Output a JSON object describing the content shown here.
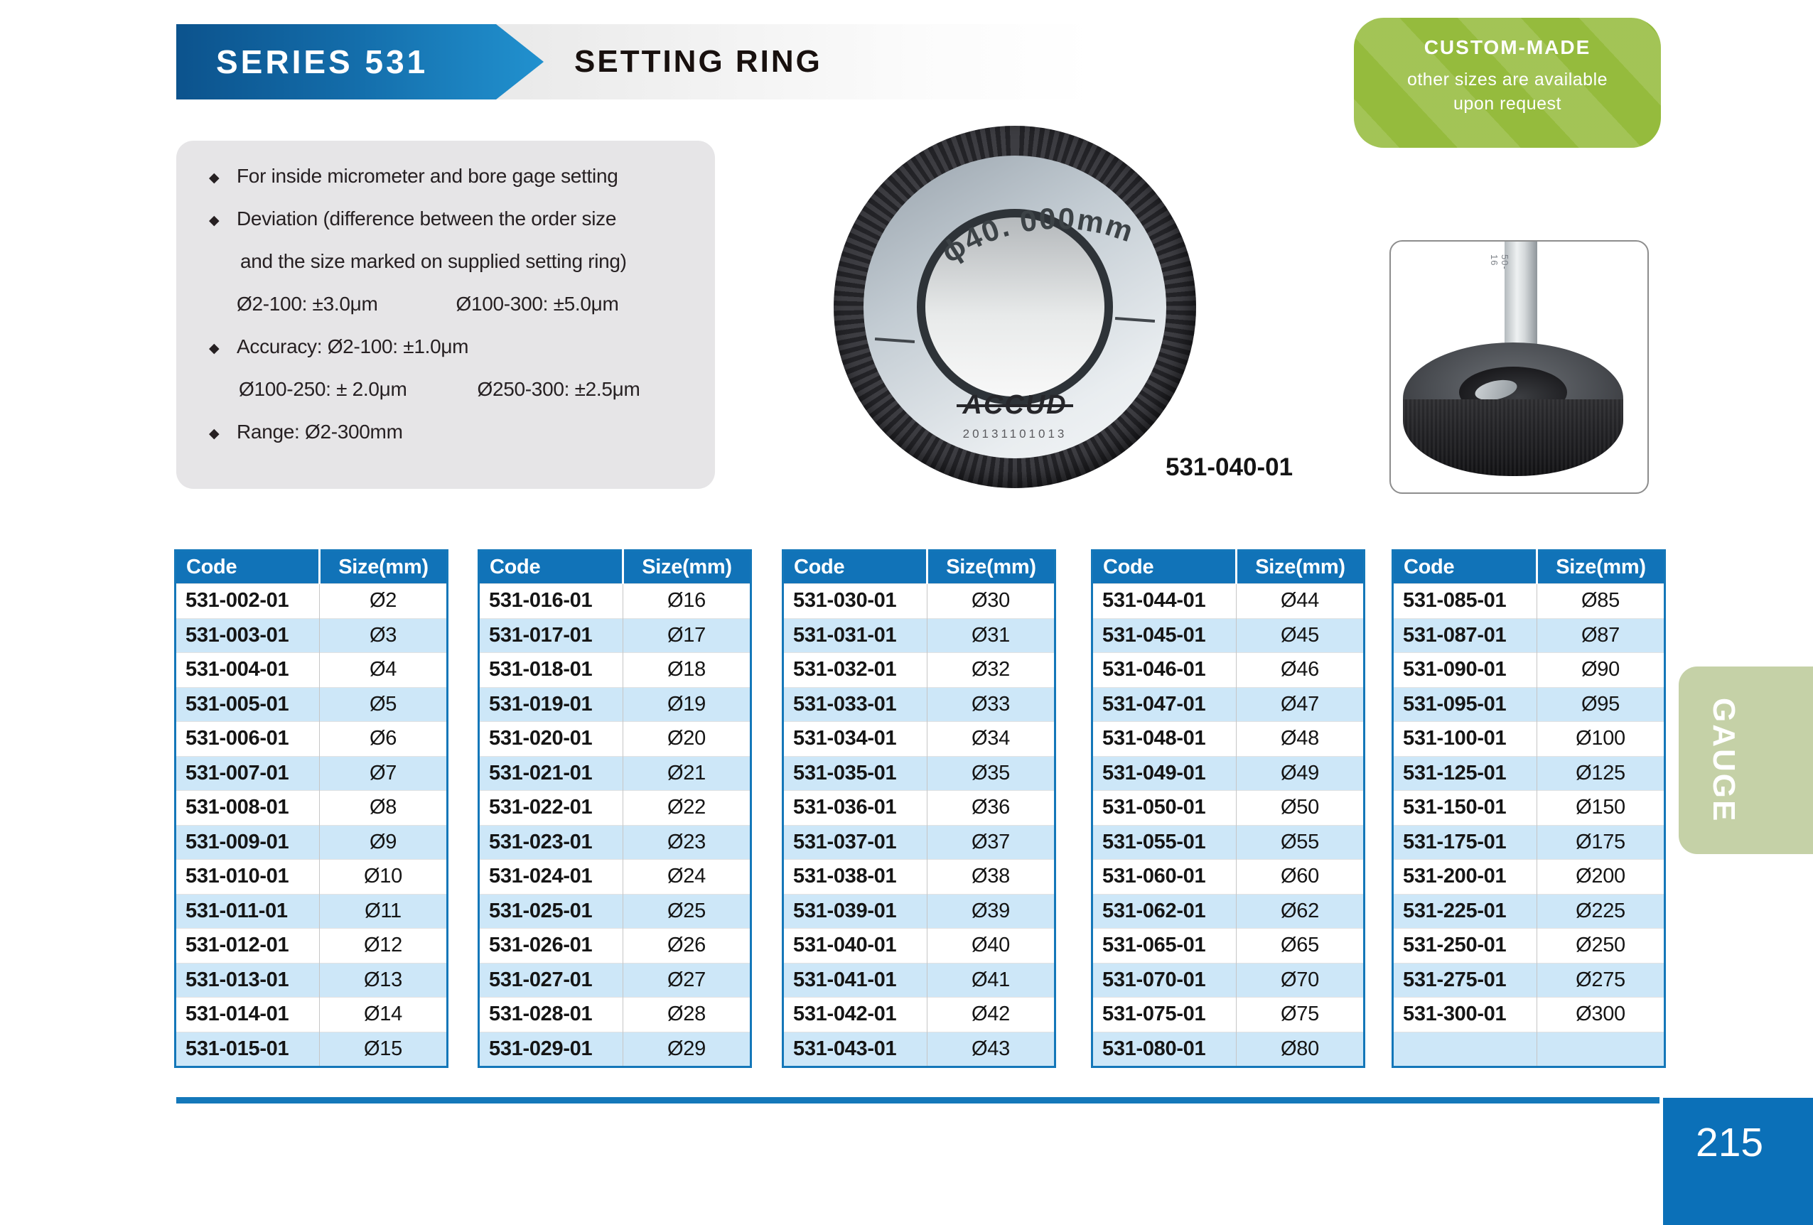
{
  "page": {
    "series": "SERIES 531",
    "title": "SETTING RING",
    "side_tab": "GAUGE",
    "page_number": "215"
  },
  "colors": {
    "accent_blue": "#1173b8",
    "row_alt_blue": "#cde7f8",
    "badge_green": "#95bb3d",
    "tab_sage": "#c5d1a7",
    "footer_blue": "#0b70b8"
  },
  "badge": {
    "title": "CUSTOM-MADE",
    "line1": "other sizes are available",
    "line2": "upon request"
  },
  "features": {
    "bullet1": "For inside micrometer and bore gage setting",
    "bullet2_line1": "Deviation (difference between the order size",
    "bullet2_line2": "and the size marked on supplied setting ring)",
    "bullet2_val1": "Ø2-100: ±3.0μm",
    "bullet2_val2": "Ø100-300: ±5.0μm",
    "bullet3_line1": "Accuracy: Ø2-100:  ±1.0μm",
    "bullet3_val1": "Ø100-250: ± 2.0μm",
    "bullet3_val2": "Ø250-300:  ±2.5μm",
    "bullet4": "Range: Ø2-300mm"
  },
  "product": {
    "ring_marking": "ϕ40. 000mm",
    "ring_brand": "ACCUD",
    "ring_serial": "20131101013",
    "ring_code_label": "531-040-01",
    "photo_rod_label": "50-16"
  },
  "tables": [
    {
      "headers": [
        "Code",
        "Size(mm)"
      ],
      "rows": [
        [
          "531-002-01",
          "Ø2"
        ],
        [
          "531-003-01",
          "Ø3"
        ],
        [
          "531-004-01",
          "Ø4"
        ],
        [
          "531-005-01",
          "Ø5"
        ],
        [
          "531-006-01",
          "Ø6"
        ],
        [
          "531-007-01",
          "Ø7"
        ],
        [
          "531-008-01",
          "Ø8"
        ],
        [
          "531-009-01",
          "Ø9"
        ],
        [
          "531-010-01",
          "Ø10"
        ],
        [
          "531-011-01",
          "Ø11"
        ],
        [
          "531-012-01",
          "Ø12"
        ],
        [
          "531-013-01",
          "Ø13"
        ],
        [
          "531-014-01",
          "Ø14"
        ],
        [
          "531-015-01",
          "Ø15"
        ]
      ]
    },
    {
      "headers": [
        "Code",
        "Size(mm)"
      ],
      "rows": [
        [
          "531-016-01",
          "Ø16"
        ],
        [
          "531-017-01",
          "Ø17"
        ],
        [
          "531-018-01",
          "Ø18"
        ],
        [
          "531-019-01",
          "Ø19"
        ],
        [
          "531-020-01",
          "Ø20"
        ],
        [
          "531-021-01",
          "Ø21"
        ],
        [
          "531-022-01",
          "Ø22"
        ],
        [
          "531-023-01",
          "Ø23"
        ],
        [
          "531-024-01",
          "Ø24"
        ],
        [
          "531-025-01",
          "Ø25"
        ],
        [
          "531-026-01",
          "Ø26"
        ],
        [
          "531-027-01",
          "Ø27"
        ],
        [
          "531-028-01",
          "Ø28"
        ],
        [
          "531-029-01",
          "Ø29"
        ]
      ]
    },
    {
      "headers": [
        "Code",
        "Size(mm)"
      ],
      "rows": [
        [
          "531-030-01",
          "Ø30"
        ],
        [
          "531-031-01",
          "Ø31"
        ],
        [
          "531-032-01",
          "Ø32"
        ],
        [
          "531-033-01",
          "Ø33"
        ],
        [
          "531-034-01",
          "Ø34"
        ],
        [
          "531-035-01",
          "Ø35"
        ],
        [
          "531-036-01",
          "Ø36"
        ],
        [
          "531-037-01",
          "Ø37"
        ],
        [
          "531-038-01",
          "Ø38"
        ],
        [
          "531-039-01",
          "Ø39"
        ],
        [
          "531-040-01",
          "Ø40"
        ],
        [
          "531-041-01",
          "Ø41"
        ],
        [
          "531-042-01",
          "Ø42"
        ],
        [
          "531-043-01",
          "Ø43"
        ]
      ]
    },
    {
      "headers": [
        "Code",
        "Size(mm)"
      ],
      "rows": [
        [
          "531-044-01",
          "Ø44"
        ],
        [
          "531-045-01",
          "Ø45"
        ],
        [
          "531-046-01",
          "Ø46"
        ],
        [
          "531-047-01",
          "Ø47"
        ],
        [
          "531-048-01",
          "Ø48"
        ],
        [
          "531-049-01",
          "Ø49"
        ],
        [
          "531-050-01",
          "Ø50"
        ],
        [
          "531-055-01",
          "Ø55"
        ],
        [
          "531-060-01",
          "Ø60"
        ],
        [
          "531-062-01",
          "Ø62"
        ],
        [
          "531-065-01",
          "Ø65"
        ],
        [
          "531-070-01",
          "Ø70"
        ],
        [
          "531-075-01",
          "Ø75"
        ],
        [
          "531-080-01",
          "Ø80"
        ]
      ]
    },
    {
      "headers": [
        "Code",
        "Size(mm)"
      ],
      "rows": [
        [
          "531-085-01",
          "Ø85"
        ],
        [
          "531-087-01",
          "Ø87"
        ],
        [
          "531-090-01",
          "Ø90"
        ],
        [
          "531-095-01",
          "Ø95"
        ],
        [
          "531-100-01",
          "Ø100"
        ],
        [
          "531-125-01",
          "Ø125"
        ],
        [
          "531-150-01",
          "Ø150"
        ],
        [
          "531-175-01",
          "Ø175"
        ],
        [
          "531-200-01",
          "Ø200"
        ],
        [
          "531-225-01",
          "Ø225"
        ],
        [
          "531-250-01",
          "Ø250"
        ],
        [
          "531-275-01",
          "Ø275"
        ],
        [
          "531-300-01",
          "Ø300"
        ],
        [
          "",
          ""
        ]
      ]
    }
  ]
}
